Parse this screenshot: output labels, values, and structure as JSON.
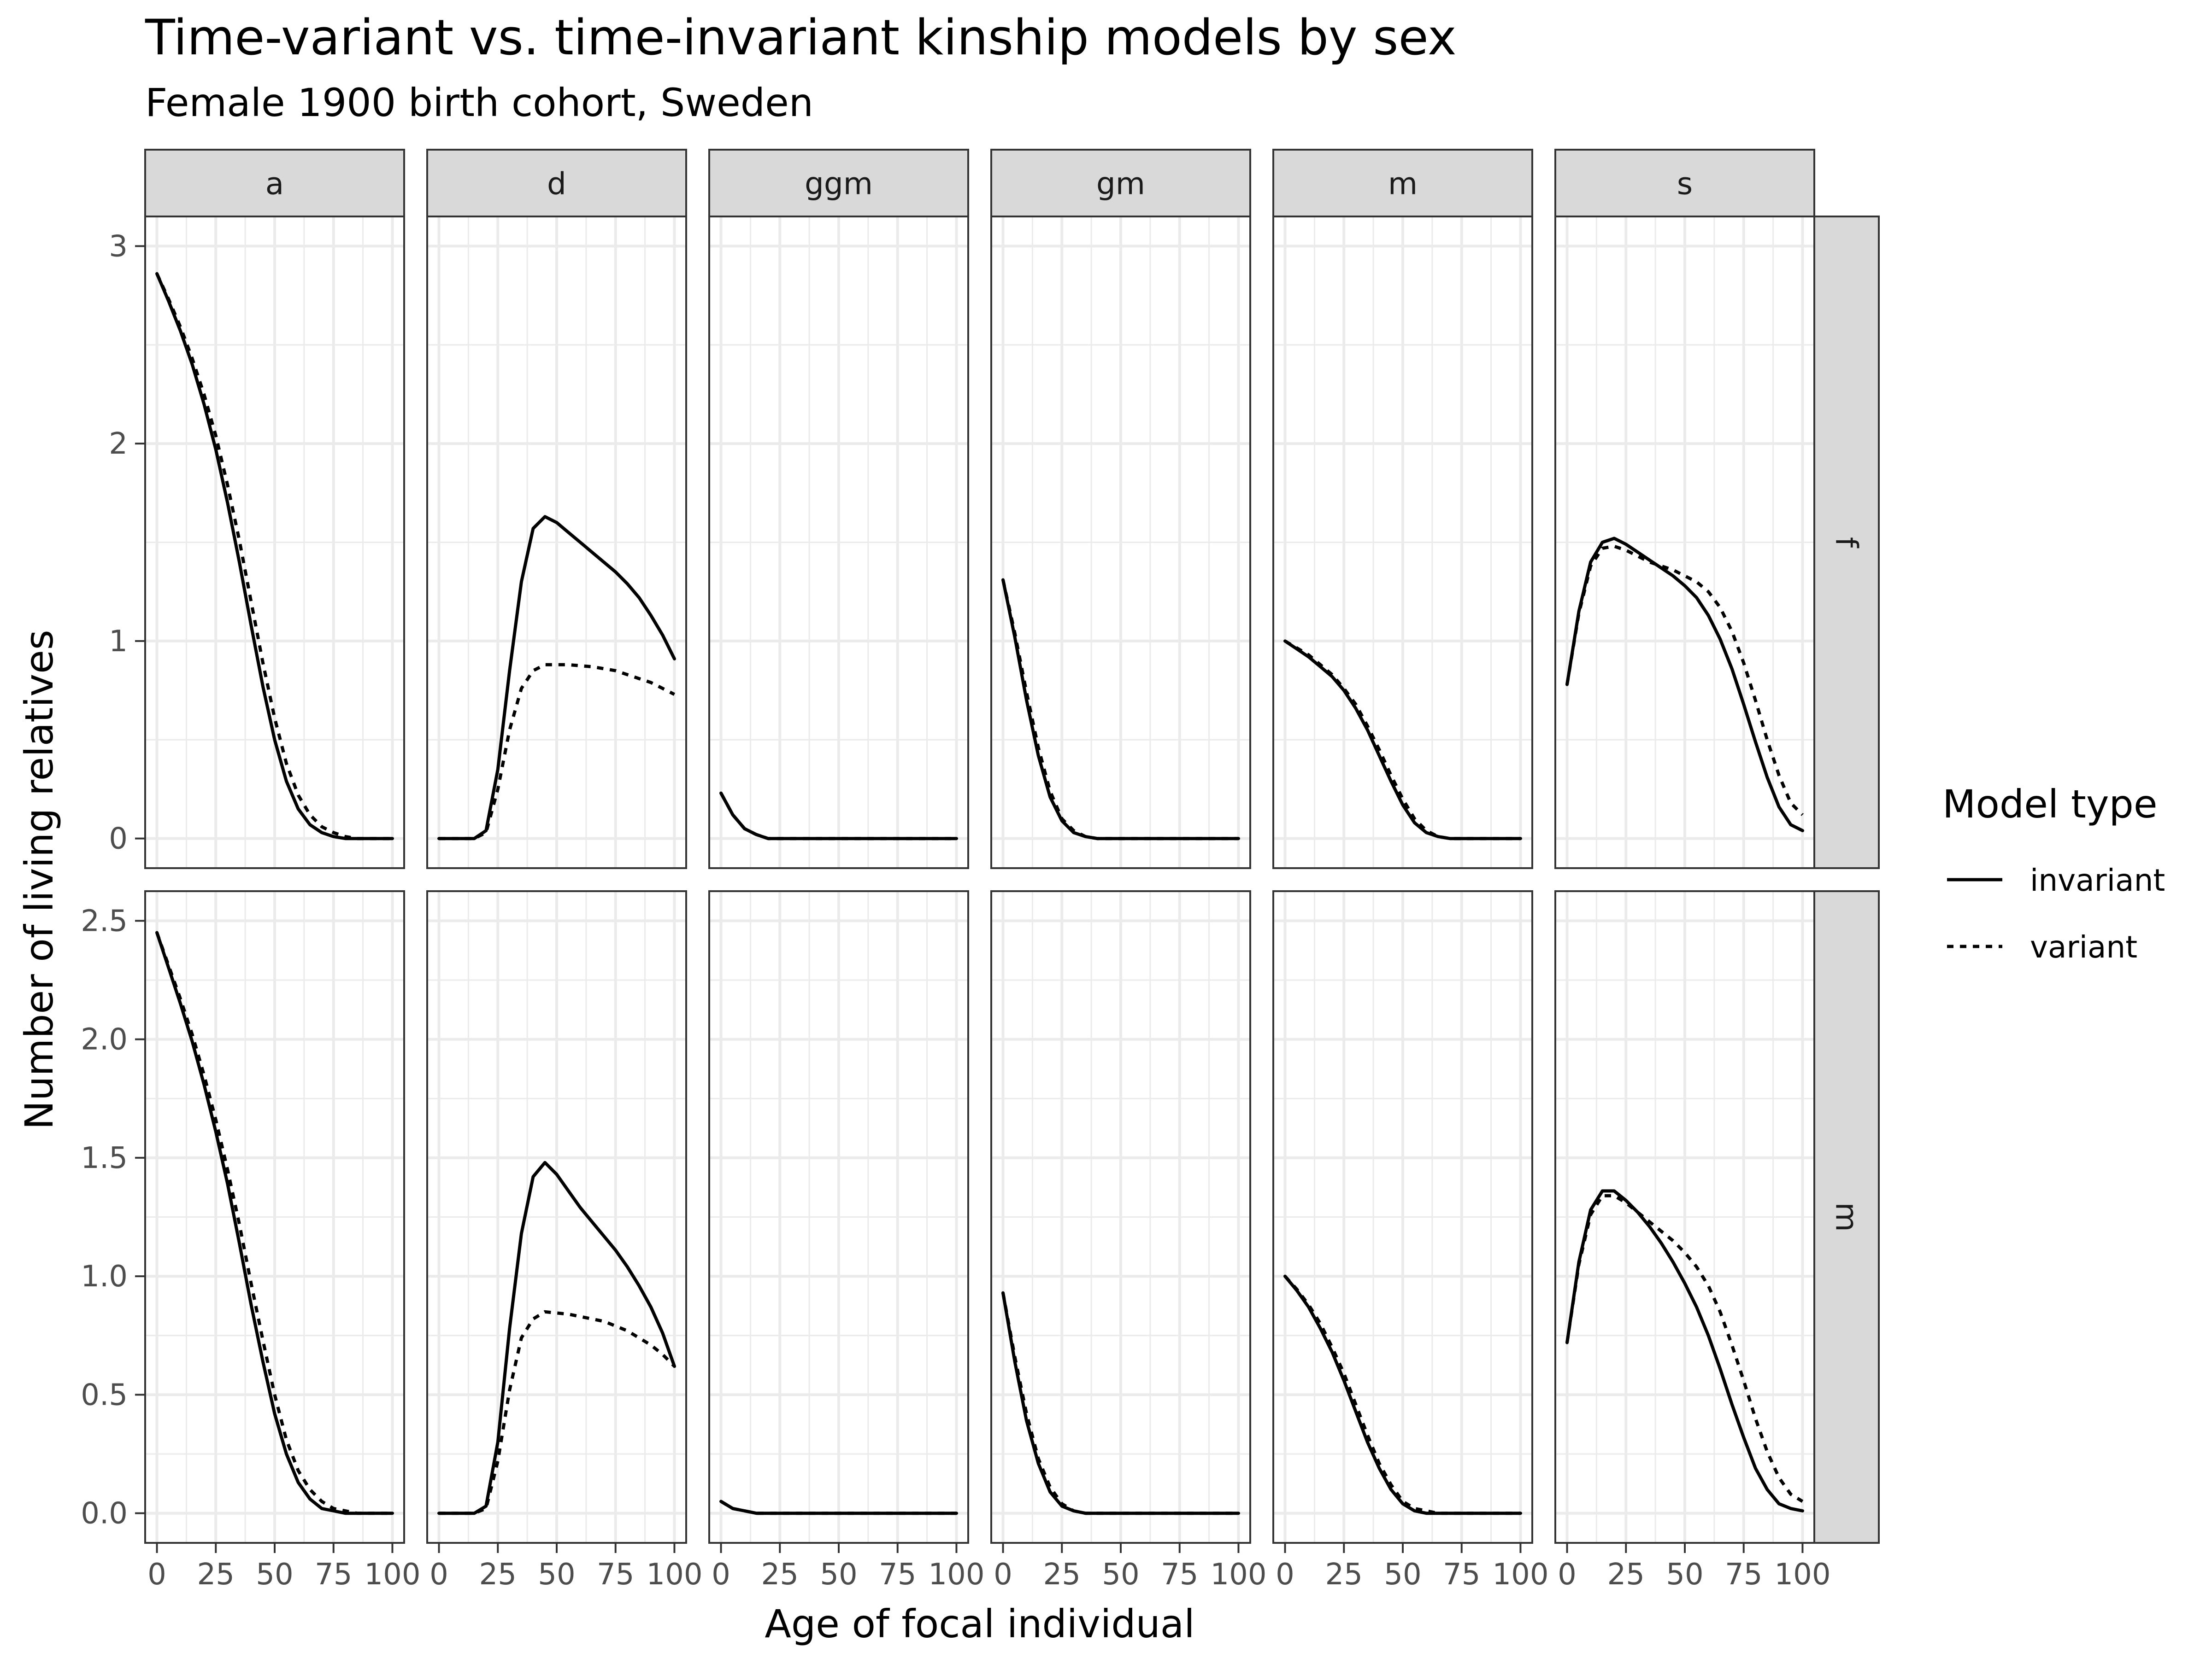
{
  "chart_data": {
    "type": "line",
    "title": "Time-variant vs. time-invariant kinship models by sex",
    "subtitle": "Female 1900 birth cohort, Sweden",
    "xlabel": "Age of focal individual",
    "ylabel": "Number of living relatives",
    "x_ticks": [
      0,
      25,
      50,
      75,
      100
    ],
    "x_range": [
      0,
      100
    ],
    "facet_columns": [
      "a",
      "d",
      "ggm",
      "gm",
      "m",
      "s"
    ],
    "facet_rows": [
      "f",
      "m"
    ],
    "rows": [
      {
        "label": "f",
        "ylim": [
          0,
          3
        ],
        "y_ticks": [
          0,
          1,
          2,
          3
        ],
        "y_tick_labels": [
          "0",
          "1",
          "2",
          "3"
        ]
      },
      {
        "label": "m",
        "ylim": [
          0,
          2.5
        ],
        "y_ticks": [
          0,
          0.5,
          1,
          1.5,
          2,
          2.5
        ],
        "y_tick_labels": [
          "0.0",
          "0.5",
          "1.0",
          "1.5",
          "2.0",
          "2.5"
        ]
      }
    ],
    "grid": true,
    "legend": {
      "title": "Model type",
      "position": "right",
      "entries": [
        {
          "name": "invariant",
          "linetype": "solid"
        },
        {
          "name": "variant",
          "linetype": "dashed"
        }
      ]
    },
    "x": [
      0,
      5,
      10,
      15,
      20,
      25,
      30,
      35,
      40,
      45,
      50,
      55,
      60,
      65,
      70,
      75,
      80,
      85,
      90,
      95,
      100
    ],
    "panels": [
      {
        "row": "f",
        "col": "a",
        "invariant": [
          2.86,
          2.72,
          2.57,
          2.4,
          2.2,
          1.97,
          1.7,
          1.4,
          1.08,
          0.77,
          0.5,
          0.29,
          0.15,
          0.07,
          0.03,
          0.01,
          0.0,
          0.0,
          0.0,
          0.0,
          0.0
        ],
        "variant": [
          2.86,
          2.73,
          2.59,
          2.43,
          2.25,
          2.04,
          1.79,
          1.51,
          1.2,
          0.89,
          0.61,
          0.38,
          0.22,
          0.12,
          0.06,
          0.03,
          0.01,
          0.0,
          0.0,
          0.0,
          0.0
        ]
      },
      {
        "row": "f",
        "col": "d",
        "invariant": [
          0.0,
          0.0,
          0.0,
          0.0,
          0.04,
          0.35,
          0.85,
          1.3,
          1.57,
          1.63,
          1.6,
          1.55,
          1.5,
          1.45,
          1.4,
          1.35,
          1.29,
          1.22,
          1.13,
          1.03,
          0.91
        ],
        "variant": [
          0.0,
          0.0,
          0.0,
          0.0,
          0.03,
          0.25,
          0.55,
          0.76,
          0.85,
          0.88,
          0.88,
          0.88,
          0.875,
          0.87,
          0.86,
          0.85,
          0.83,
          0.81,
          0.79,
          0.76,
          0.73
        ]
      },
      {
        "row": "f",
        "col": "ggm",
        "invariant": [
          0.23,
          0.12,
          0.05,
          0.02,
          0.0,
          0.0,
          0.0,
          0.0,
          0.0,
          0.0,
          0.0,
          0.0,
          0.0,
          0.0,
          0.0,
          0.0,
          0.0,
          0.0,
          0.0,
          0.0,
          0.0
        ],
        "variant": [
          0.23,
          0.12,
          0.05,
          0.02,
          0.0,
          0.0,
          0.0,
          0.0,
          0.0,
          0.0,
          0.0,
          0.0,
          0.0,
          0.0,
          0.0,
          0.0,
          0.0,
          0.0,
          0.0,
          0.0,
          0.0
        ]
      },
      {
        "row": "f",
        "col": "gm",
        "invariant": [
          1.31,
          1.02,
          0.7,
          0.42,
          0.21,
          0.09,
          0.03,
          0.01,
          0.0,
          0.0,
          0.0,
          0.0,
          0.0,
          0.0,
          0.0,
          0.0,
          0.0,
          0.0,
          0.0,
          0.0,
          0.0
        ],
        "variant": [
          1.31,
          1.04,
          0.74,
          0.46,
          0.24,
          0.1,
          0.04,
          0.01,
          0.0,
          0.0,
          0.0,
          0.0,
          0.0,
          0.0,
          0.0,
          0.0,
          0.0,
          0.0,
          0.0,
          0.0,
          0.0
        ]
      },
      {
        "row": "f",
        "col": "m",
        "invariant": [
          1.0,
          0.96,
          0.92,
          0.87,
          0.82,
          0.75,
          0.66,
          0.55,
          0.42,
          0.29,
          0.17,
          0.08,
          0.03,
          0.01,
          0.0,
          0.0,
          0.0,
          0.0,
          0.0,
          0.0,
          0.0
        ],
        "variant": [
          1.0,
          0.965,
          0.93,
          0.88,
          0.83,
          0.76,
          0.68,
          0.57,
          0.45,
          0.32,
          0.2,
          0.1,
          0.04,
          0.01,
          0.0,
          0.0,
          0.0,
          0.0,
          0.0,
          0.0,
          0.0
        ]
      },
      {
        "row": "f",
        "col": "s",
        "invariant": [
          0.78,
          1.15,
          1.4,
          1.5,
          1.52,
          1.49,
          1.45,
          1.41,
          1.37,
          1.33,
          1.28,
          1.22,
          1.13,
          1.01,
          0.86,
          0.68,
          0.49,
          0.31,
          0.16,
          0.07,
          0.04
        ],
        "variant": [
          0.78,
          1.14,
          1.38,
          1.47,
          1.48,
          1.46,
          1.43,
          1.4,
          1.38,
          1.36,
          1.33,
          1.3,
          1.25,
          1.17,
          1.05,
          0.89,
          0.7,
          0.5,
          0.32,
          0.18,
          0.12
        ]
      },
      {
        "row": "m",
        "col": "a",
        "invariant": [
          2.45,
          2.3,
          2.15,
          1.99,
          1.81,
          1.61,
          1.39,
          1.14,
          0.88,
          0.64,
          0.42,
          0.25,
          0.13,
          0.06,
          0.02,
          0.01,
          0.0,
          0.0,
          0.0,
          0.0,
          0.0
        ],
        "variant": [
          2.45,
          2.31,
          2.17,
          2.02,
          1.85,
          1.66,
          1.45,
          1.22,
          0.97,
          0.73,
          0.5,
          0.31,
          0.18,
          0.1,
          0.05,
          0.02,
          0.01,
          0.0,
          0.0,
          0.0,
          0.0
        ]
      },
      {
        "row": "m",
        "col": "d",
        "invariant": [
          0.0,
          0.0,
          0.0,
          0.0,
          0.03,
          0.3,
          0.78,
          1.18,
          1.42,
          1.48,
          1.43,
          1.36,
          1.29,
          1.23,
          1.17,
          1.11,
          1.04,
          0.96,
          0.87,
          0.76,
          0.62
        ],
        "variant": [
          0.0,
          0.0,
          0.0,
          0.0,
          0.02,
          0.22,
          0.52,
          0.74,
          0.82,
          0.85,
          0.845,
          0.84,
          0.83,
          0.82,
          0.81,
          0.79,
          0.77,
          0.74,
          0.71,
          0.67,
          0.62
        ]
      },
      {
        "row": "m",
        "col": "ggm",
        "invariant": [
          0.05,
          0.02,
          0.01,
          0.0,
          0.0,
          0.0,
          0.0,
          0.0,
          0.0,
          0.0,
          0.0,
          0.0,
          0.0,
          0.0,
          0.0,
          0.0,
          0.0,
          0.0,
          0.0,
          0.0,
          0.0
        ],
        "variant": [
          0.05,
          0.02,
          0.01,
          0.0,
          0.0,
          0.0,
          0.0,
          0.0,
          0.0,
          0.0,
          0.0,
          0.0,
          0.0,
          0.0,
          0.0,
          0.0,
          0.0,
          0.0,
          0.0,
          0.0,
          0.0
        ]
      },
      {
        "row": "m",
        "col": "gm",
        "invariant": [
          0.93,
          0.64,
          0.39,
          0.21,
          0.09,
          0.03,
          0.01,
          0.0,
          0.0,
          0.0,
          0.0,
          0.0,
          0.0,
          0.0,
          0.0,
          0.0,
          0.0,
          0.0,
          0.0,
          0.0,
          0.0
        ],
        "variant": [
          0.93,
          0.66,
          0.42,
          0.23,
          0.11,
          0.04,
          0.01,
          0.0,
          0.0,
          0.0,
          0.0,
          0.0,
          0.0,
          0.0,
          0.0,
          0.0,
          0.0,
          0.0,
          0.0,
          0.0,
          0.0
        ]
      },
      {
        "row": "m",
        "col": "m",
        "invariant": [
          1.0,
          0.94,
          0.87,
          0.78,
          0.68,
          0.56,
          0.43,
          0.3,
          0.19,
          0.1,
          0.04,
          0.01,
          0.0,
          0.0,
          0.0,
          0.0,
          0.0,
          0.0,
          0.0,
          0.0,
          0.0
        ],
        "variant": [
          1.0,
          0.945,
          0.88,
          0.8,
          0.7,
          0.59,
          0.46,
          0.33,
          0.21,
          0.12,
          0.05,
          0.02,
          0.01,
          0.0,
          0.0,
          0.0,
          0.0,
          0.0,
          0.0,
          0.0,
          0.0
        ]
      },
      {
        "row": "m",
        "col": "s",
        "invariant": [
          0.72,
          1.06,
          1.28,
          1.36,
          1.36,
          1.32,
          1.27,
          1.21,
          1.14,
          1.06,
          0.97,
          0.87,
          0.75,
          0.61,
          0.46,
          0.32,
          0.19,
          0.1,
          0.04,
          0.02,
          0.01
        ],
        "variant": [
          0.72,
          1.05,
          1.26,
          1.34,
          1.34,
          1.31,
          1.27,
          1.23,
          1.19,
          1.15,
          1.1,
          1.04,
          0.96,
          0.85,
          0.71,
          0.56,
          0.4,
          0.26,
          0.15,
          0.08,
          0.05
        ]
      }
    ]
  }
}
